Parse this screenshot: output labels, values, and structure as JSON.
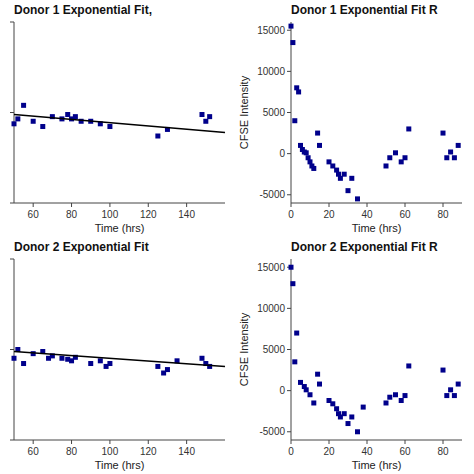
{
  "chart_data": [
    {
      "type": "scatter",
      "title": "Donor 1 Exponential Fit,",
      "xlabel": "Time (hrs)",
      "series": [
        {
          "type": "scatter",
          "color": "#00008B",
          "marker": "square",
          "x": [
            50,
            52,
            55,
            60,
            65,
            70,
            75,
            78,
            80,
            82,
            85,
            90,
            95,
            100,
            125,
            130,
            148,
            150,
            152
          ],
          "values": [
            7500,
            8500,
            12000,
            8000,
            7000,
            9000,
            8500,
            9500,
            8500,
            9000,
            8000,
            8000,
            7500,
            7000,
            5500,
            6500,
            9500,
            8000,
            9000
          ]
        },
        {
          "type": "line",
          "color": "#000000",
          "line_style": "solid",
          "x": [
            50,
            160
          ],
          "values": [
            9500,
            6000
          ]
        }
      ],
      "xlim": [
        50,
        160
      ],
      "ylim": [
        1000,
        100000
      ],
      "xticks": [
        60,
        80,
        100,
        120,
        140
      ],
      "yticks": [
        1000,
        10000,
        100000
      ],
      "log": "y",
      "tick_labels": "x"
    },
    {
      "type": "scatter",
      "title": "Donor 1 Exponential Fit R",
      "xlabel": "Time (hrs)",
      "ylabel": "CFSE Intensity",
      "series": [
        {
          "type": "scatter",
          "color": "#00008B",
          "marker": "square",
          "x": [
            0,
            1,
            2,
            3,
            4,
            5,
            6,
            7,
            8,
            9,
            10,
            11,
            12,
            14,
            15,
            20,
            22,
            24,
            25,
            26,
            28,
            30,
            32,
            35,
            50,
            52,
            55,
            58,
            60,
            62,
            80,
            82,
            84,
            86,
            88
          ],
          "values": [
            15500,
            13500,
            4000,
            8000,
            7500,
            1000,
            500,
            200,
            100,
            -500,
            -1000,
            -1500,
            -1800,
            2500,
            1000,
            -1000,
            -1500,
            -2000,
            -2500,
            -3000,
            -2500,
            -4500,
            -3000,
            -5500,
            -1500,
            -500,
            100,
            -1000,
            -500,
            3000,
            2500,
            -500,
            200,
            -500,
            1000
          ]
        }
      ],
      "xlim": [
        0,
        90
      ],
      "ylim": [
        -6000,
        16000
      ],
      "xticks": [
        0,
        20,
        40,
        60,
        80
      ],
      "yticks": [
        -5000,
        0,
        5000,
        10000,
        15000
      ]
    },
    {
      "type": "scatter",
      "title": "Donor 2 Exponential Fit",
      "xlabel": "Time (hrs)",
      "series": [
        {
          "type": "scatter",
          "color": "#00008B",
          "marker": "square",
          "x": [
            50,
            52,
            55,
            60,
            65,
            68,
            70,
            75,
            78,
            80,
            82,
            90,
            95,
            98,
            100,
            125,
            128,
            130,
            135,
            148,
            150,
            152
          ],
          "values": [
            8000,
            10000,
            7000,
            9000,
            9500,
            8000,
            8500,
            8000,
            7800,
            7500,
            8200,
            7000,
            7500,
            6500,
            7000,
            6500,
            5500,
            6000,
            7500,
            8000,
            7000,
            6500
          ]
        },
        {
          "type": "line",
          "color": "#000000",
          "line_style": "solid",
          "x": [
            50,
            160
          ],
          "values": [
            9500,
            6500
          ]
        }
      ],
      "xlim": [
        50,
        160
      ],
      "ylim": [
        1000,
        100000
      ],
      "xticks": [
        60,
        80,
        100,
        120,
        140
      ],
      "yticks": [
        1000,
        10000,
        100000
      ],
      "log": "y",
      "tick_labels": "x"
    },
    {
      "type": "scatter",
      "title": "Donor 2 Exponential Fit R",
      "xlabel": "Time (hrs)",
      "ylabel": "CFSE Intensity",
      "series": [
        {
          "type": "scatter",
          "color": "#00008B",
          "marker": "square",
          "x": [
            0,
            1,
            2,
            3,
            5,
            7,
            8,
            10,
            12,
            14,
            15,
            20,
            22,
            24,
            25,
            26,
            28,
            30,
            32,
            35,
            38,
            50,
            52,
            55,
            58,
            60,
            62,
            80,
            82,
            84,
            86,
            88
          ],
          "values": [
            15000,
            13000,
            3500,
            7000,
            1000,
            500,
            100,
            -500,
            -1500,
            2000,
            800,
            -1200,
            -1600,
            -2200,
            -2800,
            -3200,
            -2800,
            -4000,
            -3200,
            -5000,
            -2000,
            -1500,
            -800,
            -500,
            -1200,
            -600,
            3000,
            2500,
            -600,
            100,
            -600,
            800
          ]
        }
      ],
      "xlim": [
        0,
        90
      ],
      "ylim": [
        -6000,
        16000
      ],
      "xticks": [
        0,
        20,
        40,
        60,
        80
      ],
      "yticks": [
        -5000,
        0,
        5000,
        10000,
        15000
      ]
    }
  ]
}
